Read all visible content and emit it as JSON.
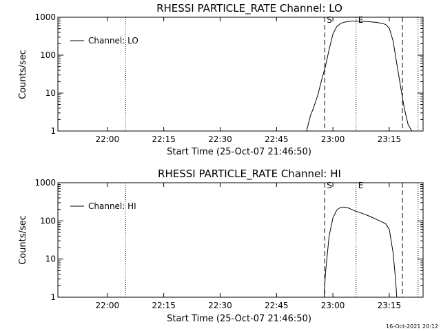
{
  "footer": {
    "timestamp": "16-Oct-2021 20:12"
  },
  "chart_data": [
    {
      "type": "line",
      "title": "RHESSI PARTICLE_RATE Channel: LO",
      "xlabel": "Start Time (25-Oct-07 21:46:50)",
      "ylabel": "Counts/sec",
      "yscale": "log",
      "ylim": [
        1,
        1000
      ],
      "xlim": [
        "21:46:50",
        "23:24:00"
      ],
      "x_ticks": [
        "22:00",
        "22:15",
        "22:30",
        "22:45",
        "23:00",
        "23:15"
      ],
      "y_ticks": [
        "1",
        "10",
        "100",
        "1000"
      ],
      "legend": {
        "position": "top-left",
        "entries": [
          "Channel: LO"
        ]
      },
      "markers": [
        {
          "time": "22:04:50",
          "style": "dotted"
        },
        {
          "time": "22:57:50",
          "style": "dashed",
          "label": "S"
        },
        {
          "time": "23:06:10",
          "style": "dotted",
          "label": "E"
        },
        {
          "time": "23:18:30",
          "style": "dashed"
        },
        {
          "time": "23:22:40",
          "style": "dotted"
        }
      ],
      "series": [
        {
          "name": "Channel: LO",
          "points": [
            [
              "22:53:00",
              1
            ],
            [
              "22:54:00",
              2.5
            ],
            [
              "22:55:00",
              4.5
            ],
            [
              "22:56:00",
              9
            ],
            [
              "22:57:00",
              22
            ],
            [
              "22:58:00",
              50
            ],
            [
              "22:59:00",
              140
            ],
            [
              "23:00:00",
              360
            ],
            [
              "23:01:00",
              560
            ],
            [
              "23:02:00",
              680
            ],
            [
              "23:03:00",
              740
            ],
            [
              "23:04:00",
              770
            ],
            [
              "23:05:00",
              790
            ],
            [
              "23:06:00",
              790
            ],
            [
              "23:08:00",
              780
            ],
            [
              "23:10:00",
              760
            ],
            [
              "23:12:00",
              720
            ],
            [
              "23:14:00",
              650
            ],
            [
              "23:15:00",
              520
            ],
            [
              "23:16:00",
              240
            ],
            [
              "23:17:00",
              60
            ],
            [
              "23:18:00",
              15
            ],
            [
              "23:19:00",
              4
            ],
            [
              "23:20:00",
              1.5
            ],
            [
              "23:21:00",
              1
            ]
          ]
        }
      ]
    },
    {
      "type": "line",
      "title": "RHESSI PARTICLE_RATE Channel: HI",
      "xlabel": "Start Time (25-Oct-07 21:46:50)",
      "ylabel": "Counts/sec",
      "yscale": "log",
      "ylim": [
        1,
        1000
      ],
      "xlim": [
        "21:46:50",
        "23:24:00"
      ],
      "x_ticks": [
        "22:00",
        "22:15",
        "22:30",
        "22:45",
        "23:00",
        "23:15"
      ],
      "y_ticks": [
        "1",
        "10",
        "100",
        "1000"
      ],
      "legend": {
        "position": "top-left",
        "entries": [
          "Channel: HI"
        ]
      },
      "markers": [
        {
          "time": "22:04:50",
          "style": "dotted"
        },
        {
          "time": "22:57:50",
          "style": "dashed",
          "label": "S"
        },
        {
          "time": "23:06:10",
          "style": "dotted",
          "label": "E"
        },
        {
          "time": "23:18:30",
          "style": "dashed"
        },
        {
          "time": "23:22:40",
          "style": "dotted"
        }
      ],
      "series": [
        {
          "name": "Channel: HI",
          "points": [
            [
              "22:57:40",
              1
            ],
            [
              "22:58:00",
              4
            ],
            [
              "22:59:00",
              40
            ],
            [
              "23:00:00",
              120
            ],
            [
              "23:01:00",
              190
            ],
            [
              "23:02:00",
              225
            ],
            [
              "23:03:00",
              230
            ],
            [
              "23:04:00",
              220
            ],
            [
              "23:05:00",
              200
            ],
            [
              "23:06:00",
              180
            ],
            [
              "23:08:00",
              155
            ],
            [
              "23:10:00",
              130
            ],
            [
              "23:12:00",
              105
            ],
            [
              "23:14:00",
              85
            ],
            [
              "23:15:00",
              60
            ],
            [
              "23:16:00",
              15
            ],
            [
              "23:16:40",
              3
            ],
            [
              "23:17:00",
              1
            ]
          ]
        }
      ]
    }
  ]
}
